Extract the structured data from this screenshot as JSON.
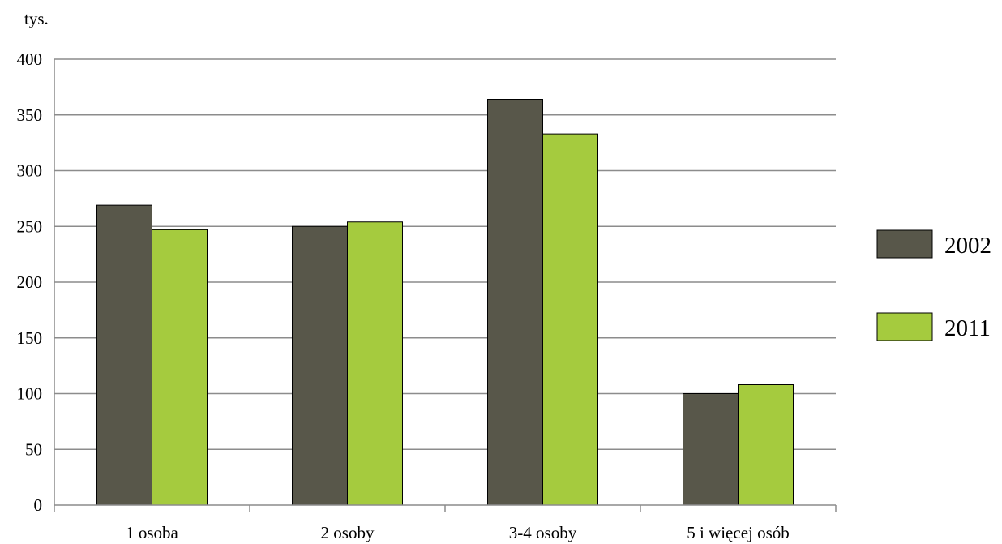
{
  "chart_data": {
    "type": "bar",
    "title": "",
    "xlabel": "",
    "ylabel": "tys.",
    "categories": [
      "1 osoba",
      "2 osoby",
      "3-4 osoby",
      "5 i więcej osób"
    ],
    "series": [
      {
        "name": "2002",
        "values": [
          269,
          250,
          364,
          100
        ],
        "color": "#58574a"
      },
      {
        "name": "2011",
        "values": [
          247,
          254,
          333,
          108
        ],
        "color": "#a5cb3e"
      }
    ],
    "ylim": [
      0,
      400
    ],
    "yticks": [
      0,
      50,
      100,
      150,
      200,
      250,
      300,
      350,
      400
    ],
    "grid": true,
    "legend_position": "right"
  }
}
